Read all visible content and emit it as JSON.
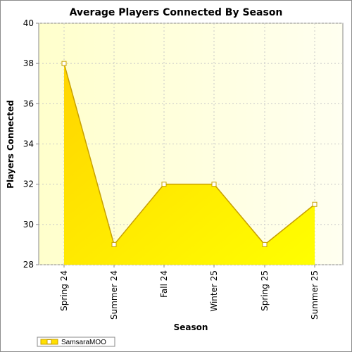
{
  "chart_data": {
    "type": "area",
    "title": "Average Players Connected By Season",
    "xlabel": "Season",
    "ylabel": "Players Connected",
    "categories": [
      "Spring 24",
      "Summer 24",
      "Fall 24",
      "Winter 25",
      "Spring 25",
      "Summer 25"
    ],
    "series": [
      {
        "name": "SamsaraMOO",
        "values": [
          38,
          29,
          32,
          32,
          29,
          31
        ]
      }
    ],
    "ylim": [
      28,
      40
    ],
    "yticks": [
      28,
      30,
      32,
      34,
      36,
      38,
      40
    ],
    "grid": true,
    "legend": "bottom-left",
    "colors": {
      "area_fill_top": "#ffd400",
      "area_fill_bottom": "#ffff00",
      "line": "#c8a000",
      "plot_bg_left": "#ffffcc",
      "plot_bg_right": "#fffff0",
      "marker_fill": "#ffffff"
    }
  }
}
